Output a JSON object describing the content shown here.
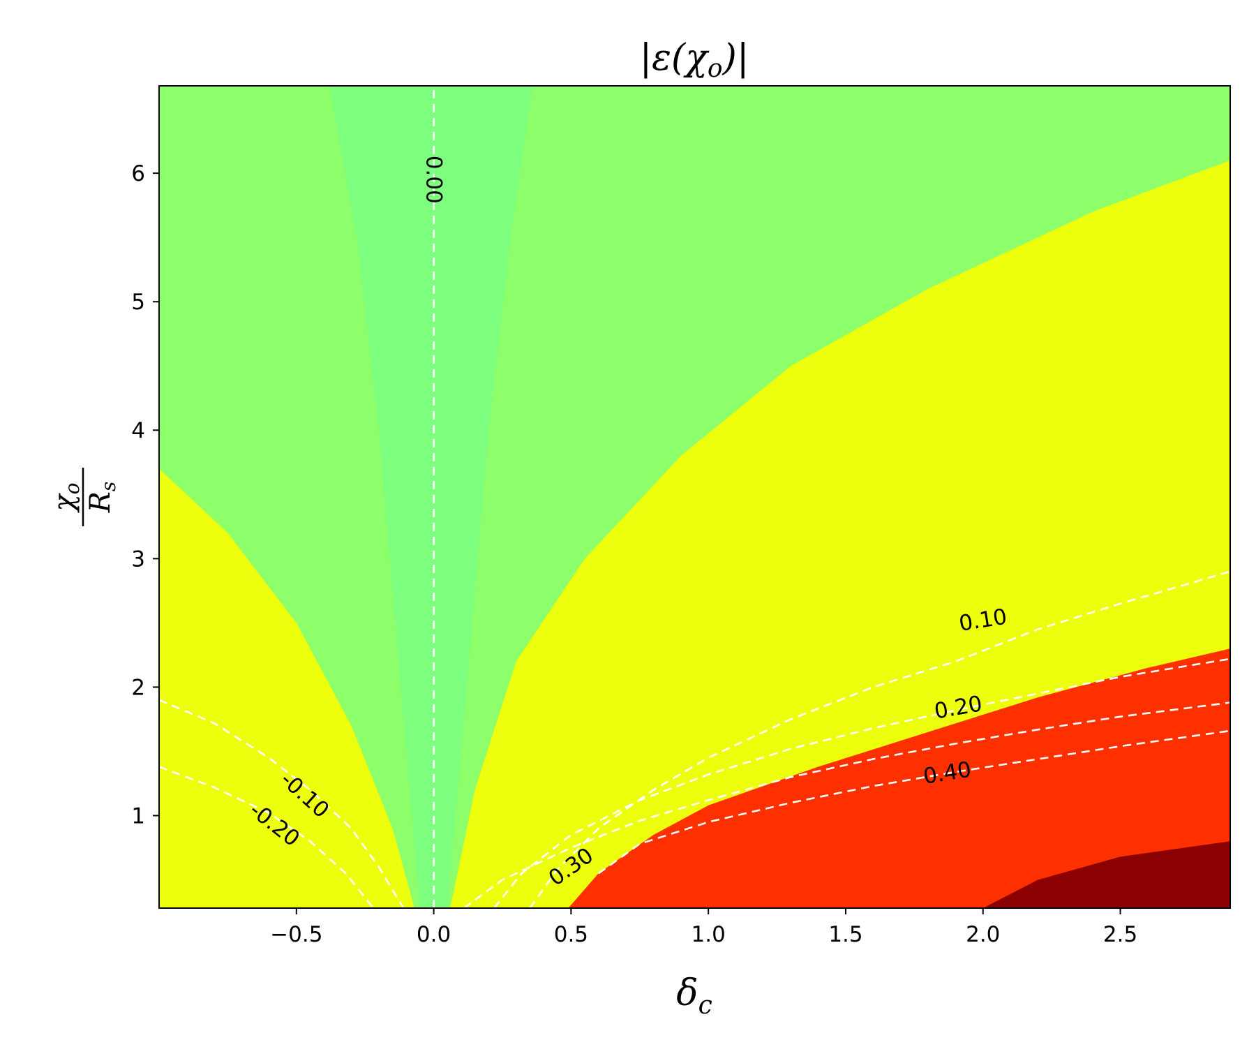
{
  "chart_data": {
    "type": "contour",
    "title": "|ε(χ_o)|",
    "xlabel": "δ_c",
    "ylabel": "χ_o / R_s",
    "xlim": [
      -1.0,
      2.9
    ],
    "ylim": [
      0.28,
      6.68
    ],
    "xticks": [
      -0.5,
      0.0,
      0.5,
      1.0,
      1.5,
      2.0,
      2.5
    ],
    "xtick_labels": [
      "−0.5",
      "0.0",
      "0.5",
      "1.0",
      "1.5",
      "2.0",
      "2.5"
    ],
    "yticks": [
      1,
      2,
      3,
      4,
      5,
      6
    ],
    "ytick_labels": [
      "1",
      "2",
      "3",
      "4",
      "5",
      "6"
    ],
    "grid": false,
    "filled_levels": [
      {
        "range": "near 0",
        "color": "#7fff7f"
      },
      {
        "range": "low",
        "color": "#8cff6a"
      },
      {
        "range": "mid",
        "color": "#eeff0e"
      },
      {
        "range": "high",
        "color": "#ff3000"
      },
      {
        "range": "highest",
        "color": "#8b0000"
      }
    ],
    "contour_lines": [
      {
        "label": "0.00",
        "style": "dashed",
        "color": "#ffffff",
        "x": [
          0.0,
          0.0
        ],
        "y": [
          0.28,
          6.68
        ]
      },
      {
        "label": "0.10",
        "style": "dashed",
        "color": "#ffffff",
        "x": [
          0.35,
          0.45,
          0.6,
          0.8,
          1.0,
          1.3,
          1.6,
          1.9,
          2.2,
          2.5,
          2.9
        ],
        "y": [
          0.28,
          0.58,
          0.9,
          1.2,
          1.45,
          1.75,
          2.0,
          2.2,
          2.45,
          2.65,
          2.9
        ]
      },
      {
        "label": "0.20",
        "style": "dashed",
        "color": "#ffffff",
        "x": [
          0.22,
          0.32,
          0.5,
          0.75,
          1.0,
          1.3,
          1.6,
          1.9,
          2.2,
          2.5,
          2.9
        ],
        "y": [
          0.28,
          0.55,
          0.85,
          1.12,
          1.32,
          1.52,
          1.68,
          1.82,
          1.95,
          2.08,
          2.22
        ]
      },
      {
        "label": "0.30",
        "style": "dashed",
        "color": "#ffffff",
        "x": [
          0.11,
          0.25,
          0.5,
          0.75,
          1.0,
          1.3,
          1.6,
          1.9,
          2.2,
          2.5,
          2.9
        ],
        "y": [
          0.28,
          0.5,
          0.75,
          0.96,
          1.12,
          1.3,
          1.44,
          1.56,
          1.67,
          1.77,
          1.88
        ]
      },
      {
        "label": "0.40",
        "style": "dashed",
        "color": "#ffffff",
        "x": [
          0.6,
          0.75,
          1.0,
          1.3,
          1.6,
          1.9,
          2.2,
          2.5,
          2.9
        ],
        "y": [
          0.55,
          0.78,
          0.95,
          1.1,
          1.23,
          1.34,
          1.44,
          1.54,
          1.66
        ]
      },
      {
        "label": "-0.10",
        "style": "dashed",
        "color": "#ffffff",
        "x": [
          -1.0,
          -0.8,
          -0.6,
          -0.45,
          -0.3,
          -0.2,
          -0.11
        ],
        "y": [
          1.9,
          1.72,
          1.45,
          1.2,
          0.9,
          0.6,
          0.28
        ]
      },
      {
        "label": "-0.20",
        "style": "dashed",
        "color": "#ffffff",
        "x": [
          -1.0,
          -0.8,
          -0.6,
          -0.45,
          -0.32,
          -0.22
        ],
        "y": [
          1.38,
          1.22,
          1.02,
          0.8,
          0.55,
          0.28
        ]
      }
    ],
    "region_boundaries": {
      "light_green_core_left": {
        "x": [
          -0.05,
          -0.12,
          -0.2,
          -0.28,
          -0.38
        ],
        "y": [
          0.28,
          2.0,
          4.0,
          5.5,
          6.68
        ]
      },
      "light_green_core_right": {
        "x": [
          0.05,
          0.12,
          0.2,
          0.28,
          0.36
        ],
        "y": [
          0.28,
          2.0,
          4.0,
          5.5,
          6.68
        ]
      },
      "green_yellow_left": {
        "x": [
          -1.0,
          -0.75,
          -0.5,
          -0.3,
          -0.15,
          -0.07
        ],
        "y": [
          3.7,
          3.2,
          2.5,
          1.7,
          0.9,
          0.28
        ]
      },
      "green_yellow_right": {
        "x": [
          0.06,
          0.15,
          0.3,
          0.55,
          0.9,
          1.3,
          1.8,
          2.4,
          2.9
        ],
        "y": [
          0.28,
          1.2,
          2.2,
          3.0,
          3.8,
          4.5,
          5.1,
          5.7,
          6.1
        ]
      },
      "yellow_red": {
        "x": [
          0.49,
          0.6,
          0.8,
          1.0,
          1.4,
          1.8,
          2.2,
          2.6,
          2.9
        ],
        "y": [
          0.28,
          0.55,
          0.85,
          1.08,
          1.38,
          1.65,
          1.92,
          2.15,
          2.3
        ]
      },
      "red_darkred": {
        "x": [
          2.0,
          2.2,
          2.5,
          2.9
        ],
        "y": [
          0.28,
          0.5,
          0.68,
          0.8
        ]
      }
    }
  }
}
